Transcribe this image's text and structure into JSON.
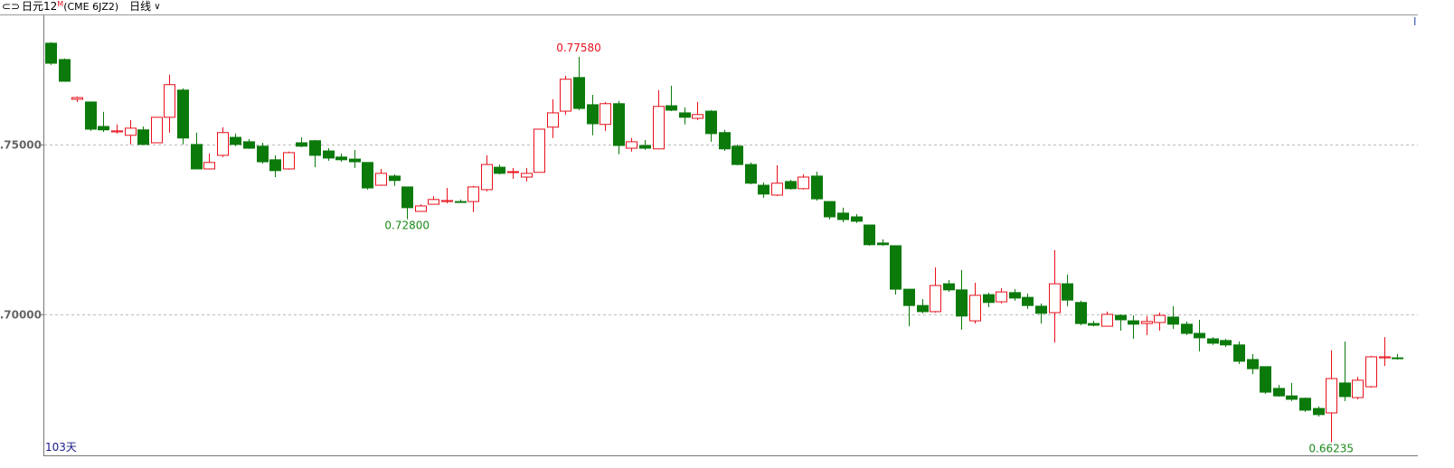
{
  "header": {
    "symbol": "日元12",
    "superscript": "M",
    "code": "(CME 6JZ2)",
    "period": "日线"
  },
  "chart_data": {
    "type": "candlestick",
    "open": [
      0.7798,
      0.775,
      0.7633,
      0.7625,
      0.7553,
      0.7537,
      0.7527,
      0.7543,
      0.7505,
      0.758,
      0.766,
      0.75,
      0.7428,
      0.7468,
      0.7521,
      0.7508,
      0.7495,
      0.7455,
      0.7428,
      0.7505,
      0.7511,
      0.7481,
      0.7463,
      0.7457,
      0.7447,
      0.738,
      0.7407,
      0.7375,
      0.7303,
      0.7324,
      0.7332,
      0.7332,
      0.7332,
      0.7367,
      0.7433,
      0.7418,
      0.7404,
      0.7418,
      0.7551,
      0.7598,
      0.7697,
      0.7617,
      0.7559,
      0.762,
      0.7489,
      0.7497,
      0.7487,
      0.7614,
      0.7593,
      0.7577,
      0.7598,
      0.7535,
      0.7495,
      0.7441,
      0.738,
      0.7351,
      0.7391,
      0.737,
      0.7407,
      0.7332,
      0.7298,
      0.7287,
      0.7263,
      0.721,
      0.7202,
      0.7074,
      0.7026,
      0.7008,
      0.709,
      0.7072,
      0.6981,
      0.7058,
      0.7037,
      0.7064,
      0.705,
      0.7024,
      0.7005,
      0.709,
      0.7035,
      0.6973,
      0.6965,
      0.6997,
      0.6981,
      0.6973,
      0.6976,
      0.6992,
      0.6971,
      0.6944,
      0.6928,
      0.6923,
      0.691,
      0.6867,
      0.6846,
      0.6782,
      0.676,
      0.6753,
      0.6723,
      0.671,
      0.6798,
      0.6755,
      0.6787,
      0.6872,
      0.6872
    ],
    "high": [
      0.7801,
      0.7753,
      0.7641,
      0.7625,
      0.7596,
      0.7559,
      0.7572,
      0.7553,
      0.758,
      0.7705,
      0.7665,
      0.7535,
      0.7473,
      0.7551,
      0.7532,
      0.7516,
      0.7505,
      0.7468,
      0.7479,
      0.7521,
      0.7513,
      0.7489,
      0.7473,
      0.7484,
      0.7447,
      0.7428,
      0.7412,
      0.7375,
      0.7324,
      0.7348,
      0.7372,
      0.7338,
      0.7378,
      0.7468,
      0.7441,
      0.7431,
      0.7431,
      0.7545,
      0.7633,
      0.7702,
      0.7758,
      0.7646,
      0.7625,
      0.7628,
      0.7519,
      0.7513,
      0.766,
      0.7673,
      0.7609,
      0.7625,
      0.7601,
      0.7543,
      0.75,
      0.7447,
      0.7388,
      0.7439,
      0.7396,
      0.7412,
      0.742,
      0.7332,
      0.7314,
      0.7295,
      0.7263,
      0.7221,
      0.7202,
      0.7074,
      0.7045,
      0.7138,
      0.7101,
      0.713,
      0.7093,
      0.7064,
      0.7077,
      0.7074,
      0.7061,
      0.7032,
      0.7189,
      0.7117,
      0.704,
      0.6981,
      0.7008,
      0.7,
      0.6997,
      0.6995,
      0.7005,
      0.7024,
      0.6979,
      0.6984,
      0.6933,
      0.6928,
      0.692,
      0.6883,
      0.6846,
      0.6792,
      0.6798,
      0.6755,
      0.6729,
      0.6894,
      0.692,
      0.6816,
      0.6878,
      0.6933,
      0.6883
    ],
    "low": [
      0.7734,
      0.7686,
      0.7625,
      0.754,
      0.7537,
      0.7532,
      0.75,
      0.75,
      0.7505,
      0.7535,
      0.75,
      0.7428,
      0.7428,
      0.7463,
      0.7495,
      0.7487,
      0.7444,
      0.7404,
      0.7426,
      0.7492,
      0.7433,
      0.7452,
      0.7449,
      0.7431,
      0.7367,
      0.7378,
      0.7378,
      0.728,
      0.7303,
      0.7324,
      0.7327,
      0.733,
      0.7301,
      0.7362,
      0.7412,
      0.7399,
      0.7391,
      0.7418,
      0.7519,
      0.7588,
      0.7601,
      0.7527,
      0.754,
      0.7471,
      0.7479,
      0.7484,
      0.7487,
      0.7598,
      0.7559,
      0.7572,
      0.7508,
      0.7481,
      0.7439,
      0.7383,
      0.7343,
      0.7348,
      0.7367,
      0.7367,
      0.7335,
      0.7279,
      0.7271,
      0.7269,
      0.7202,
      0.7202,
      0.7058,
      0.6965,
      0.7003,
      0.7005,
      0.7066,
      0.6955,
      0.6973,
      0.7021,
      0.7032,
      0.704,
      0.7016,
      0.6973,
      0.6917,
      0.7024,
      0.6968,
      0.6965,
      0.6965,
      0.6952,
      0.6928,
      0.6939,
      0.6952,
      0.6957,
      0.6939,
      0.6891,
      0.691,
      0.6904,
      0.6854,
      0.6824,
      0.6766,
      0.6758,
      0.6745,
      0.6713,
      0.6699,
      0.66235,
      0.6745,
      0.675,
      0.6784,
      0.6848,
      0.6867
    ],
    "close": [
      0.7739,
      0.7686,
      0.7638,
      0.7545,
      0.7543,
      0.754,
      0.7548,
      0.75,
      0.758,
      0.7676,
      0.7519,
      0.7428,
      0.7447,
      0.7535,
      0.75,
      0.7489,
      0.7449,
      0.7423,
      0.7476,
      0.7495,
      0.7468,
      0.746,
      0.7455,
      0.7449,
      0.7372,
      0.7415,
      0.7394,
      0.7314,
      0.7319,
      0.7338,
      0.7335,
      0.733,
      0.7375,
      0.7441,
      0.7415,
      0.742,
      0.7415,
      0.7545,
      0.7593,
      0.7692,
      0.7606,
      0.7561,
      0.762,
      0.7497,
      0.7508,
      0.7489,
      0.7612,
      0.7601,
      0.758,
      0.7588,
      0.7532,
      0.7487,
      0.7441,
      0.7386,
      0.7354,
      0.7386,
      0.737,
      0.7404,
      0.734,
      0.7287,
      0.7279,
      0.7274,
      0.7205,
      0.7205,
      0.7074,
      0.7026,
      0.7008,
      0.7085,
      0.7072,
      0.6995,
      0.7056,
      0.7035,
      0.7066,
      0.7048,
      0.7026,
      0.7003,
      0.709,
      0.7042,
      0.6973,
      0.6968,
      0.7,
      0.6984,
      0.6971,
      0.6979,
      0.6997,
      0.6971,
      0.6944,
      0.6931,
      0.6915,
      0.691,
      0.6862,
      0.684,
      0.6771,
      0.676,
      0.675,
      0.6718,
      0.6705,
      0.6811,
      0.6758,
      0.6806,
      0.6875,
      0.6875,
      0.687
    ],
    "ylim": [
      0.6585,
      0.788
    ],
    "yticks": [
      {
        "value": 0.7,
        "label": "0.70000"
      },
      {
        "value": 0.75,
        "label": "0.75000"
      }
    ],
    "grid": true,
    "up_color": "#e8101a",
    "down_color": "#0b7a0b",
    "annotations": [
      {
        "text": "0.77580",
        "value": 0.7758,
        "color": "#e8101a"
      },
      {
        "text": "0.72800",
        "value": 0.728,
        "color": "#1a8a1a"
      },
      {
        "text": "0.66235",
        "value": 0.66235,
        "color": "#1a8a1a"
      }
    ],
    "footer_label": "103天",
    "corner_mark": "I"
  }
}
